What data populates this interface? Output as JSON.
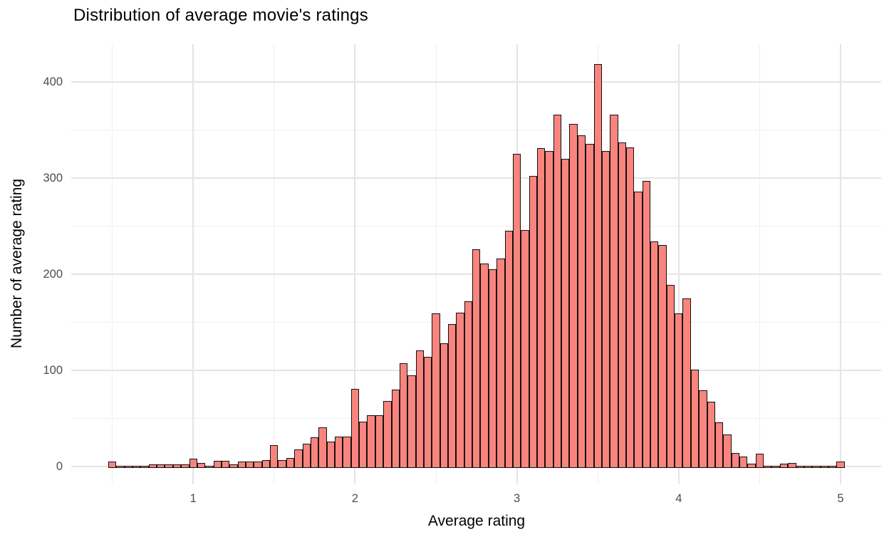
{
  "chart_data": {
    "type": "bar",
    "subtype": "histogram",
    "title": "Distribution of average movie's ratings",
    "xlabel": "Average rating",
    "ylabel": "Number of average rating",
    "legend": "none",
    "grid": "on",
    "background": "#ffffff",
    "bar_fill": "#F9847E",
    "bar_stroke": "#111111",
    "major_grid_color": "#E4E4E4",
    "minor_grid_color": "#EFEFEF",
    "tick_label_color": "#4D4D4D",
    "title_color": "#000000",
    "bin_width": 0.05,
    "xlim": [
      0.25,
      5.25
    ],
    "ylim": [
      0,
      440
    ],
    "x_ticks": [
      1,
      2,
      3,
      4,
      5
    ],
    "x_minor_ticks": [
      0.5,
      1.5,
      2.5,
      3.5,
      4.5
    ],
    "y_ticks": [
      0,
      100,
      200,
      300,
      400
    ],
    "y_minor_ticks": [
      50,
      150,
      250,
      350
    ],
    "bin_centers": [
      0.5,
      0.55,
      0.6,
      0.65,
      0.7,
      0.75,
      0.8,
      0.85,
      0.9,
      0.95,
      1.0,
      1.05,
      1.1,
      1.15,
      1.2,
      1.25,
      1.3,
      1.35,
      1.4,
      1.45,
      1.5,
      1.55,
      1.6,
      1.65,
      1.7,
      1.75,
      1.8,
      1.85,
      1.9,
      1.95,
      2.0,
      2.05,
      2.1,
      2.15,
      2.2,
      2.25,
      2.3,
      2.35,
      2.4,
      2.45,
      2.5,
      2.55,
      2.6,
      2.65,
      2.7,
      2.75,
      2.8,
      2.85,
      2.9,
      2.95,
      3.0,
      3.05,
      3.1,
      3.15,
      3.2,
      3.25,
      3.3,
      3.35,
      3.4,
      3.45,
      3.5,
      3.55,
      3.6,
      3.65,
      3.7,
      3.75,
      3.8,
      3.85,
      3.9,
      3.95,
      4.0,
      4.05,
      4.1,
      4.15,
      4.2,
      4.25,
      4.3,
      4.35,
      4.4,
      4.45,
      4.5,
      4.55,
      4.6,
      4.65,
      4.7,
      4.75,
      4.8,
      4.85,
      4.9,
      4.95,
      5.0
    ],
    "counts": [
      5,
      1,
      1,
      1,
      1,
      2,
      2,
      2,
      2,
      2,
      8,
      4,
      1,
      6,
      6,
      2,
      5,
      5,
      5,
      7,
      22,
      7,
      9,
      18,
      24,
      30,
      41,
      26,
      31,
      31,
      81,
      47,
      53,
      53,
      68,
      80,
      107,
      95,
      121,
      114,
      159,
      128,
      148,
      160,
      172,
      226,
      211,
      205,
      216,
      245,
      325,
      246,
      302,
      331,
      328,
      366,
      320,
      356,
      344,
      335,
      418,
      328,
      366,
      337,
      332,
      286,
      297,
      234,
      230,
      189,
      159,
      175,
      101,
      79,
      67,
      46,
      33,
      14,
      10,
      3,
      13,
      1,
      1,
      3,
      4,
      1,
      1,
      1,
      1,
      1,
      5
    ]
  }
}
